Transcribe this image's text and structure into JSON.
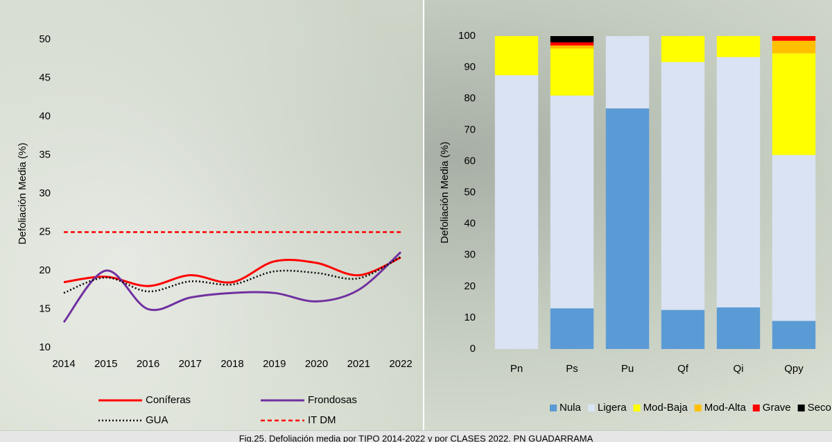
{
  "chart_data": [
    {
      "type": "line",
      "ylabel": "Defoliación Media (%)",
      "x": [
        2014,
        2015,
        2016,
        2017,
        2018,
        2019,
        2020,
        2021,
        2022
      ],
      "xlim": [
        2014,
        2022
      ],
      "xticks": [
        2014,
        2015,
        2016,
        2017,
        2018,
        2019,
        2020,
        2021,
        2022
      ],
      "ylim": [
        10,
        50
      ],
      "yticks": [
        10,
        15,
        20,
        25,
        30,
        35,
        40,
        45,
        50
      ],
      "grid": false,
      "legend": "bottom",
      "series": [
        {
          "name": "Coníferas",
          "color": "#ff0000",
          "style": "solid",
          "values": [
            18.5,
            19.2,
            18.0,
            19.4,
            18.5,
            21.2,
            21.0,
            19.4,
            21.7
          ]
        },
        {
          "name": "Frondosas",
          "color": "#7030a0",
          "style": "solid",
          "values": [
            13.3,
            20.0,
            15.0,
            16.5,
            17.1,
            17.1,
            16.0,
            17.5,
            22.4
          ]
        },
        {
          "name": "GUA",
          "color": "#000000",
          "style": "dotted",
          "values": [
            17.1,
            19.1,
            17.3,
            18.6,
            18.2,
            19.9,
            19.7,
            19.0,
            21.8
          ]
        },
        {
          "name": "IT DM",
          "color": "#ff0000",
          "style": "dashed",
          "values": [
            25,
            25,
            25,
            25,
            25,
            25,
            25,
            25,
            25
          ]
        }
      ]
    },
    {
      "type": "bar",
      "stacked": true,
      "ylabel": "Defoliación Media (%)",
      "categories": [
        "Pn",
        "Ps",
        "Pu",
        "Qf",
        "Qi",
        "Qpy"
      ],
      "ylim": [
        0,
        100
      ],
      "yticks": [
        0,
        10,
        20,
        30,
        40,
        50,
        60,
        70,
        80,
        90,
        100
      ],
      "grid": false,
      "legend": "bottom",
      "series": [
        {
          "name": "Nula",
          "color": "#5b9bd5",
          "values": [
            0,
            13,
            76.9,
            12.5,
            13.3,
            9
          ]
        },
        {
          "name": "Ligera",
          "color": "#dae3f3",
          "values": [
            87.5,
            68,
            23.1,
            79.2,
            80,
            53
          ]
        },
        {
          "name": "Mod-Baja",
          "color": "#ffff00",
          "values": [
            12.5,
            15,
            0,
            8.3,
            6.7,
            32.5
          ]
        },
        {
          "name": "Mod-Alta",
          "color": "#ffc000",
          "values": [
            0,
            1,
            0,
            0,
            0,
            4
          ]
        },
        {
          "name": "Grave",
          "color": "#ff0000",
          "values": [
            0,
            1,
            0,
            0,
            0,
            1.5
          ]
        },
        {
          "name": "Seco",
          "color": "#000000",
          "values": [
            0,
            2,
            0,
            0,
            0,
            0
          ]
        }
      ]
    }
  ],
  "caption": "Fig.25. Defoliación media por TIPO 2014-2022 y por CLASES 2022. PN GUADARRAMA"
}
